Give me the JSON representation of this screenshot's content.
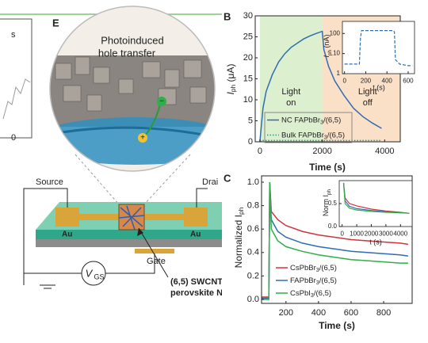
{
  "left_fragment": {
    "labels": [
      "s",
      "0"
    ]
  },
  "panel_e": {
    "label": "E",
    "title_lines": [
      "Photoinduced",
      "hole transfer"
    ],
    "charge_signs": [
      "−",
      "+"
    ],
    "source": "Source",
    "drain": "Drai",
    "au": [
      "Au",
      "Au"
    ],
    "gate": "Gate",
    "vgs": {
      "main": "V",
      "sub": "GS"
    },
    "annotation_lines": [
      "(6,5) SWCNT",
      "perovskite NC"
    ]
  },
  "chart_data": [
    {
      "type": "line",
      "panel": "B",
      "x_label": "Time (s)",
      "y_label": {
        "main": "I",
        "sub": "ph",
        "unit": " (μA)"
      },
      "x": [
        0,
        100,
        200,
        400,
        600,
        800,
        1000,
        1200,
        1400,
        1600,
        1800,
        2000,
        2050,
        2200,
        2400,
        2700,
        3000,
        3300,
        3600,
        3900
      ],
      "series": [
        {
          "name": "NC FAPbBr3/(6,5)",
          "color": "#2f6db3",
          "line_style": "solid",
          "values": [
            0,
            8,
            12,
            16,
            19,
            21,
            22.5,
            23.5,
            24.5,
            25.2,
            25.8,
            26.3,
            22,
            18,
            14.5,
            11,
            8,
            6,
            4.5,
            3.2
          ]
        },
        {
          "name": "Bulk FAPbBr3/(6,5)",
          "color": "#2a9a8a",
          "line_style": "dotted",
          "values": [
            0.2,
            0.3,
            0.3,
            0.3,
            0.3,
            0.3,
            0.3,
            0.3,
            0.3,
            0.3,
            0.3,
            0.3,
            0.3,
            0.3,
            0.3,
            0.3,
            0.3,
            0.3,
            0.3,
            0.3
          ]
        }
      ],
      "regions": [
        {
          "start": 0,
          "end": 2000,
          "color": "#dcefcf",
          "label": [
            "Light",
            "on"
          ]
        },
        {
          "start": 2000,
          "end": 4500,
          "color": "#fbe0c8",
          "label": [
            "Light",
            "off"
          ]
        }
      ],
      "xlim": [
        -150,
        4500
      ],
      "xticks": [
        0,
        2000,
        4000
      ],
      "ylim": [
        0,
        30
      ],
      "yticks": [
        0,
        5,
        10,
        15,
        20,
        25,
        30
      ],
      "log_y": false
    },
    {
      "type": "line",
      "x_label": "t (s)",
      "y_label": {
        "main": "I",
        "sub": "ph",
        "unit": " (nA)"
      },
      "x": [
        0,
        140,
        150,
        160,
        460,
        470,
        480,
        520,
        600,
        640
      ],
      "series": [
        {
          "color": "#2f6db3",
          "line_style": "dashed",
          "values": [
            3,
            3,
            60,
            140,
            140,
            120,
            5,
            3,
            2.5,
            2.5
          ]
        }
      ],
      "xlim": [
        -20,
        660
      ],
      "xticks": [
        0,
        200,
        400,
        600
      ],
      "ylim": [
        1,
        400
      ],
      "yticks": [
        1,
        10,
        100
      ],
      "log_y": true
    },
    {
      "type": "line",
      "panel": "C",
      "x_label": "Time (s)",
      "y_label": {
        "main": "Normalized I",
        "sub": "ph",
        "unit": ""
      },
      "x": [
        0,
        80,
        95,
        100,
        110,
        150,
        200,
        300,
        400,
        500,
        600,
        700,
        800,
        900,
        950
      ],
      "series": [
        {
          "name": "CsPbBr3/(6,5)",
          "color": "#d0343c",
          "line_style": "solid",
          "values": [
            0.02,
            0.02,
            0.02,
            1.0,
            0.75,
            0.68,
            0.63,
            0.58,
            0.55,
            0.53,
            0.51,
            0.5,
            0.49,
            0.48,
            0.47
          ]
        },
        {
          "name": "FAPbBr3/(6,5)",
          "color": "#2f6db3",
          "line_style": "solid",
          "values": [
            0.01,
            0.01,
            0.01,
            1.0,
            0.68,
            0.58,
            0.53,
            0.48,
            0.45,
            0.43,
            0.41,
            0.4,
            0.39,
            0.38,
            0.37
          ]
        },
        {
          "name": "CsPbI3/(6,5)",
          "color": "#2fae4a",
          "line_style": "solid",
          "values": [
            0,
            0,
            0,
            1.0,
            0.6,
            0.5,
            0.45,
            0.41,
            0.38,
            0.36,
            0.34,
            0.33,
            0.32,
            0.31,
            0.31
          ]
        }
      ],
      "xlim": [
        50,
        975
      ],
      "xticks": [
        200,
        400,
        600,
        800
      ],
      "ylim": [
        -0.034,
        1.054
      ],
      "yticks": [
        {
          "value": 0,
          "label": "0.0"
        },
        0.2,
        0.4,
        0.6,
        0.8,
        {
          "value": 1,
          "label": "1.0"
        }
      ],
      "log_y": false
    },
    {
      "type": "line",
      "x_label": "t (s)",
      "y_label": {
        "main": "Norm I",
        "sub": "ph",
        "unit": ""
      },
      "x": [
        100,
        200,
        500,
        1000,
        2000,
        3000,
        4000,
        4600
      ],
      "series": [
        {
          "color": "#d0343c",
          "line_style": "solid",
          "values": [
            0.95,
            0.62,
            0.5,
            0.45,
            0.38,
            0.34,
            0.31,
            0.29
          ]
        },
        {
          "color": "#2f6db3",
          "line_style": "solid",
          "values": [
            0.95,
            0.56,
            0.44,
            0.39,
            0.35,
            0.32,
            0.3,
            0.29
          ]
        },
        {
          "color": "#2fae4a",
          "line_style": "solid",
          "values": [
            0.95,
            0.5,
            0.4,
            0.36,
            0.33,
            0.31,
            0.3,
            0.29
          ]
        }
      ],
      "xlim": [
        -200,
        4800
      ],
      "xticks": [
        0,
        1000,
        2000,
        3000,
        4000
      ],
      "ylim": [
        0,
        1
      ],
      "yticks": [
        {
          "value": 0,
          "label": "0.0"
        },
        0.5
      ],
      "log_y": false
    }
  ]
}
